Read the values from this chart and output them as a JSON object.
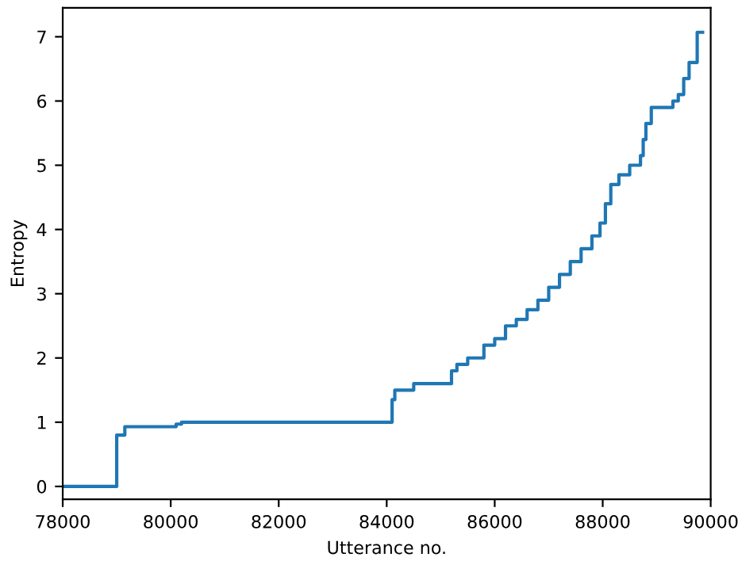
{
  "chart_data": {
    "type": "step",
    "xlabel": "Utterance no.",
    "ylabel": "Entropy",
    "x": [
      78000,
      79000,
      79150,
      80100,
      80200,
      84100,
      84150,
      84500,
      85200,
      85300,
      85500,
      85800,
      86000,
      86200,
      86400,
      86600,
      86800,
      87000,
      87200,
      87400,
      87600,
      87800,
      87950,
      88050,
      88150,
      88300,
      88500,
      88700,
      88750,
      88800,
      88900,
      89300,
      89400,
      89500,
      89600,
      89750,
      89850
    ],
    "series": [
      {
        "color": "#1f77b4",
        "values": [
          0,
          0.8,
          0.93,
          0.97,
          1.0,
          1.35,
          1.5,
          1.6,
          1.8,
          1.9,
          2.0,
          2.2,
          2.3,
          2.5,
          2.6,
          2.75,
          2.9,
          3.1,
          3.3,
          3.5,
          3.7,
          3.9,
          4.1,
          4.4,
          4.7,
          4.85,
          5.0,
          5.15,
          5.4,
          5.65,
          5.9,
          6.0,
          6.1,
          6.35,
          6.6,
          7.07,
          7.07
        ]
      }
    ],
    "xlim": [
      78000,
      90000
    ],
    "ylim": [
      -0.2,
      7.45
    ],
    "xticks": [
      78000,
      80000,
      82000,
      84000,
      86000,
      88000,
      90000
    ],
    "yticks": [
      0,
      1,
      2,
      3,
      4,
      5,
      6,
      7
    ],
    "grid": false,
    "legend": false
  }
}
